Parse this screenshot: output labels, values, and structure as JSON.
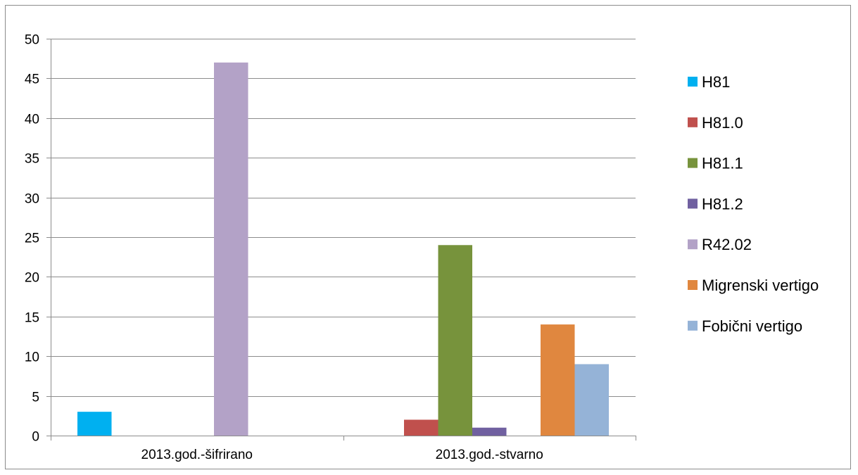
{
  "chart_data": {
    "type": "bar",
    "title": "",
    "xlabel": "",
    "ylabel": "",
    "categories": [
      "2013.god.-šifrirano",
      "2013.god.-stvarno"
    ],
    "series": [
      {
        "name": "H81",
        "color": "#00b0f0",
        "values": [
          3,
          0
        ]
      },
      {
        "name": "H81.0",
        "color": "#c0504d",
        "values": [
          0,
          2
        ]
      },
      {
        "name": "H81.1",
        "color": "#77933c",
        "values": [
          0,
          24
        ]
      },
      {
        "name": "H81.2",
        "color": "#7060a0",
        "values": [
          0,
          1
        ]
      },
      {
        "name": "R42.02",
        "color": "#b3a2c7",
        "values": [
          47,
          0
        ]
      },
      {
        "name": "Migrenski vertigo",
        "color": "#e0873f",
        "values": [
          0,
          14
        ]
      },
      {
        "name": "Fobični vertigo",
        "color": "#95b3d7",
        "values": [
          0,
          9
        ]
      }
    ],
    "ylim": [
      0,
      50
    ],
    "yticks": [
      0,
      5,
      10,
      15,
      20,
      25,
      30,
      35,
      40,
      45,
      50
    ],
    "grid": true,
    "legend_position": "right",
    "colors": {
      "grid": "#8c8c8c",
      "axis": "#8c8c8c",
      "text": "#000000"
    }
  }
}
